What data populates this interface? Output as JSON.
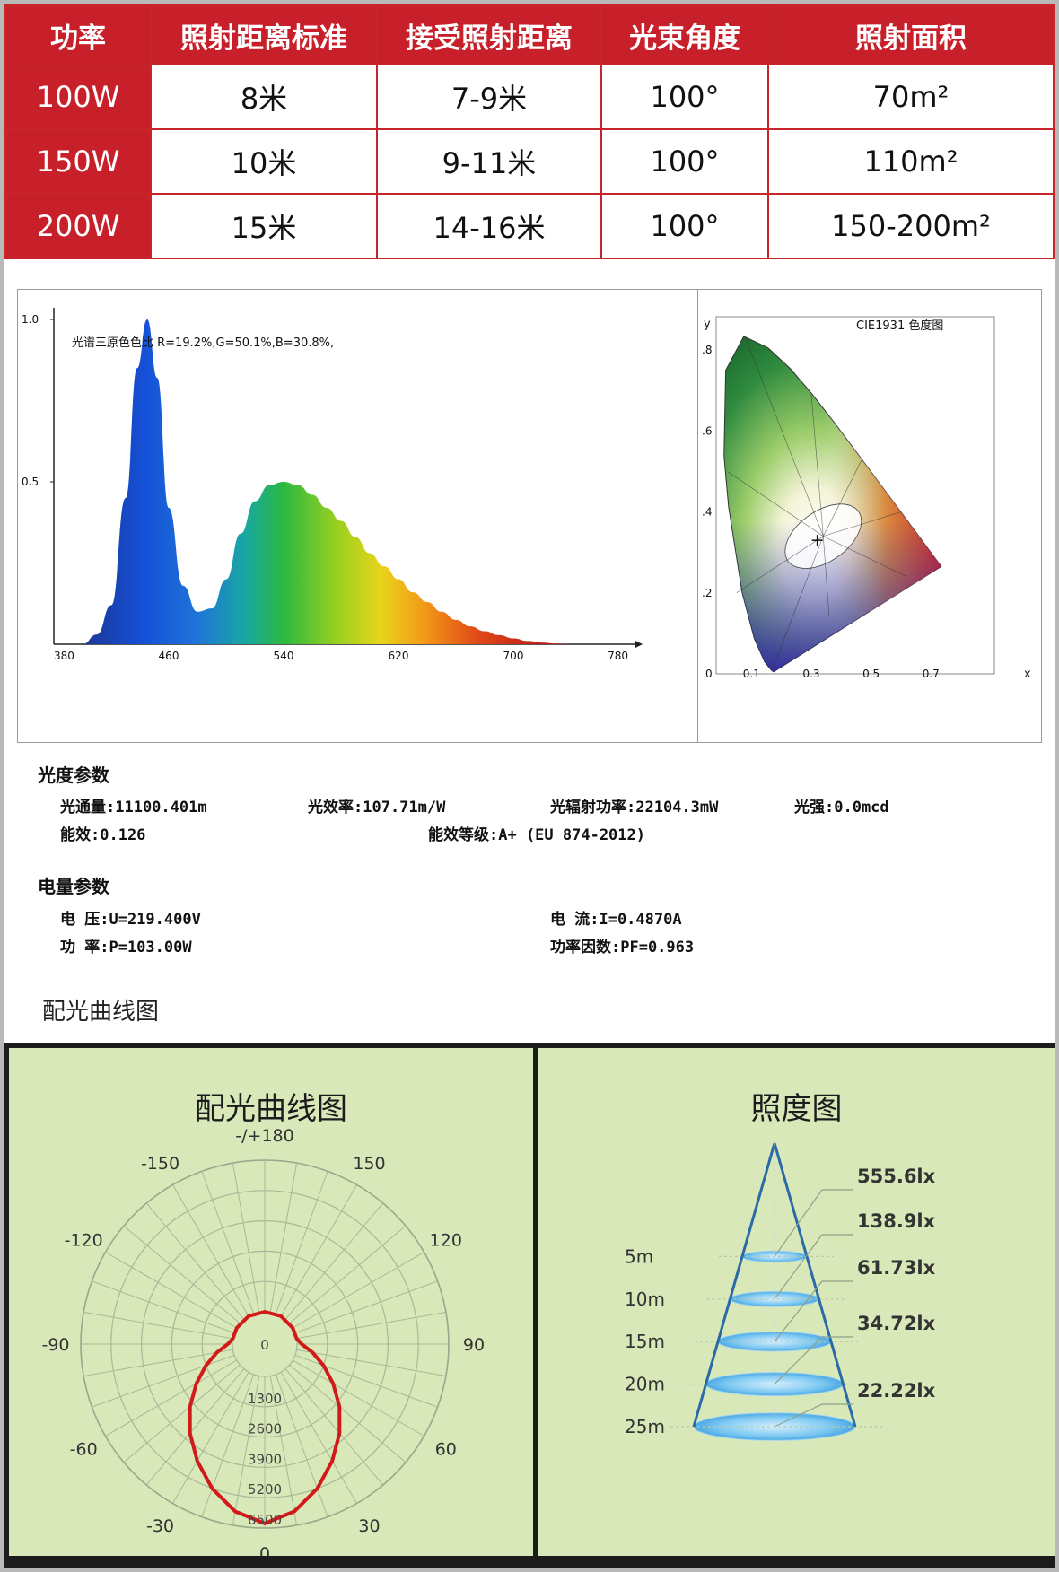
{
  "spec_table": {
    "headers": [
      "功率",
      "照射距离标准",
      "接受照射距离",
      "光束角度",
      "照射面积"
    ],
    "rows": [
      {
        "power": "100W",
        "standard": "8米",
        "range": "7-9米",
        "angle": "100°",
        "area": "70m²"
      },
      {
        "power": "150W",
        "standard": "10米",
        "range": "9-11米",
        "angle": "100°",
        "area": "110m²"
      },
      {
        "power": "200W",
        "standard": "15米",
        "range": "14-16米",
        "angle": "100°",
        "area": "150-200m²"
      }
    ]
  },
  "chart_data": [
    {
      "type": "area",
      "title": "光谱三原色色比  R=19.2%,G=50.1%,B=30.8%,",
      "x_ticks": [
        "380",
        "460",
        "540",
        "620",
        "700",
        "780"
      ],
      "y_ticks": [
        "1.0",
        "0.5"
      ],
      "xlim": [
        380,
        780
      ],
      "ylim": [
        0,
        1.0
      ],
      "x": [
        400,
        410,
        420,
        430,
        438,
        445,
        452,
        460,
        470,
        480,
        490,
        500,
        510,
        520,
        530,
        540,
        550,
        560,
        570,
        580,
        590,
        600,
        610,
        620,
        630,
        640,
        650,
        660,
        670,
        680,
        690,
        700,
        710,
        720,
        730,
        740
      ],
      "y": [
        0.0,
        0.03,
        0.12,
        0.45,
        0.85,
        1.0,
        0.82,
        0.42,
        0.18,
        0.1,
        0.11,
        0.2,
        0.34,
        0.44,
        0.49,
        0.5,
        0.49,
        0.46,
        0.42,
        0.38,
        0.33,
        0.28,
        0.24,
        0.2,
        0.16,
        0.13,
        0.1,
        0.075,
        0.055,
        0.04,
        0.028,
        0.018,
        0.01,
        0.005,
        0.002,
        0.0
      ]
    },
    {
      "type": "scatter",
      "title": "CIE1931 色度图",
      "xlabel": "x",
      "ylabel": "y",
      "x_ticks": [
        "0",
        "0.1",
        "0.3",
        "0.5",
        "0.7"
      ],
      "y_ticks": [
        ".8",
        ".6",
        ".4",
        ".2"
      ],
      "xlim": [
        0,
        0.8
      ],
      "ylim": [
        0,
        0.9
      ],
      "point": {
        "x": 0.32,
        "y": 0.33
      },
      "locus_x": [
        0.1741,
        0.1666,
        0.144,
        0.1096,
        0.0687,
        0.0235,
        0.0082,
        0.0139,
        0.0743,
        0.1547,
        0.2296,
        0.3016,
        0.3731,
        0.4441,
        0.5125,
        0.5752,
        0.627,
        0.6658,
        0.6915,
        0.7347
      ],
      "locus_y": [
        0.005,
        0.0089,
        0.0297,
        0.0868,
        0.2007,
        0.4127,
        0.5384,
        0.7502,
        0.8338,
        0.8059,
        0.7543,
        0.6923,
        0.6245,
        0.5547,
        0.4866,
        0.4242,
        0.3725,
        0.334,
        0.3083,
        0.2653
      ]
    },
    {
      "type": "line",
      "title": "配光曲线图",
      "angle_labels": [
        "-/+180",
        "-150",
        "150",
        "-120",
        "120",
        "-90",
        "90",
        "-60",
        "60",
        "-30",
        "30",
        "0"
      ],
      "radial_labels": [
        "0",
        "1300",
        "2600",
        "3900",
        "5200",
        "6500"
      ],
      "rmax": 6500,
      "angles": [
        -180,
        -150,
        -120,
        -100,
        -90,
        -80,
        -70,
        -60,
        -50,
        -40,
        -30,
        -20,
        -10,
        0,
        10,
        20,
        30,
        40,
        50,
        60,
        70,
        80,
        90,
        100,
        120,
        150,
        180
      ],
      "values": [
        0,
        0,
        0,
        0,
        200,
        700,
        1300,
        2000,
        2800,
        3600,
        4400,
        5200,
        5900,
        6300,
        5900,
        5200,
        4400,
        3600,
        2800,
        2000,
        1300,
        700,
        200,
        0,
        0,
        0,
        0
      ]
    },
    {
      "type": "table",
      "title": "照度图",
      "distances": [
        "5m",
        "10m",
        "15m",
        "20m",
        "25m"
      ],
      "lux": [
        "555.6lx",
        "138.9lx",
        "61.73lx",
        "34.72lx",
        "22.22lx"
      ]
    }
  ],
  "photometric": {
    "title": "光度参数",
    "flux": "光通量:11100.401m",
    "efficacy": "光效率:107.71m/W",
    "radiant": "光辐射功率:22104.3mW",
    "intensity": "光强:0.0mcd",
    "efficiency": "能效:0.126",
    "grade": "能效等级:A+ (EU 874-2012)"
  },
  "electrical": {
    "title": "电量参数",
    "voltage": "电    压:U=219.400V",
    "current": "电    流:I=0.4870A",
    "power": "功    率:P=103.00W",
    "pf": "功率因数:PF=0.963"
  },
  "light_curve_heading": "配光曲线图",
  "colors": {
    "red": "#c8202a",
    "panel_bg": "#d8e8b8",
    "curve": "#d21a1a",
    "cone": "#2a6aa8"
  }
}
